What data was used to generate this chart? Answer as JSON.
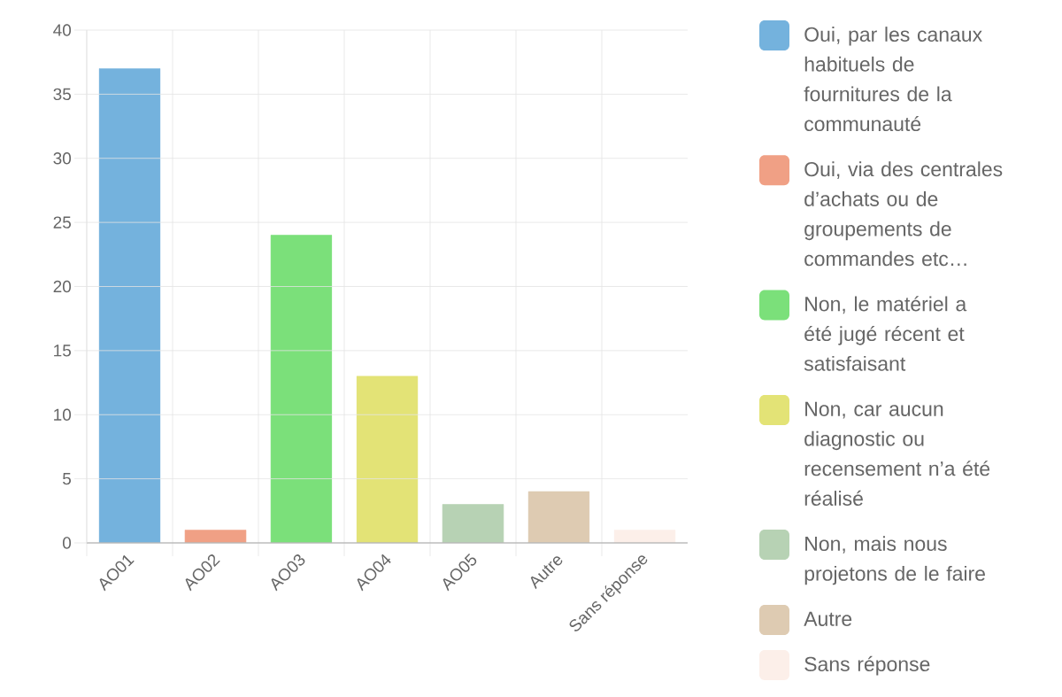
{
  "chart_data": {
    "type": "bar",
    "categories": [
      "AO01",
      "AO02",
      "AO03",
      "AO04",
      "AO05",
      "Autre",
      "Sans réponse"
    ],
    "series": [
      {
        "name": "Oui, par les canaux habituels de fournitures de la communauté",
        "color": "#74b2dd",
        "values": [
          37,
          null,
          null,
          null,
          null,
          null,
          null
        ]
      },
      {
        "name": "Oui, via des centrales d’achats ou de groupements de commandes etc…",
        "color": "#f0a085",
        "values": [
          null,
          1,
          null,
          null,
          null,
          null,
          null
        ]
      },
      {
        "name": "Non, le matériel a été jugé récent et satisfaisant",
        "color": "#7be07a",
        "values": [
          null,
          null,
          24,
          null,
          null,
          null,
          null
        ]
      },
      {
        "name": "Non, car aucun diagnostic ou recensement n’a été réalisé",
        "color": "#e3e376",
        "values": [
          null,
          null,
          null,
          13,
          null,
          null,
          null
        ]
      },
      {
        "name": "Non, mais nous projetons de le faire",
        "color": "#b7d2b4",
        "values": [
          null,
          null,
          null,
          null,
          3,
          null,
          null
        ]
      },
      {
        "name": "Autre",
        "color": "#decbb2",
        "values": [
          null,
          null,
          null,
          null,
          null,
          4,
          null
        ]
      },
      {
        "name": "Sans réponse",
        "color": "#fcefe9",
        "values": [
          null,
          null,
          null,
          null,
          null,
          null,
          1
        ]
      }
    ],
    "stacked": true,
    "ylim": [
      0,
      40
    ],
    "yticks": [
      0,
      5,
      10,
      15,
      20,
      25,
      30,
      35,
      40
    ],
    "grid": true,
    "legend": "right"
  }
}
